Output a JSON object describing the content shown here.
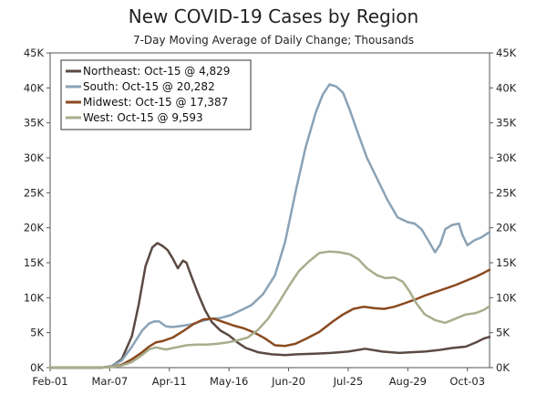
{
  "chart_data": {
    "type": "line",
    "title": "New COVID-19 Cases by Region",
    "subtitle": "7-Day Moving Average of Daily Change; Thousands",
    "xlabel": "",
    "ylabel": "",
    "x_range_days": [
      0,
      258
    ],
    "x_ticks": [
      {
        "label": "Feb-01",
        "day": 0
      },
      {
        "label": "Mar-07",
        "day": 35
      },
      {
        "label": "Apr-11",
        "day": 70
      },
      {
        "label": "May-16",
        "day": 105
      },
      {
        "label": "Jun-20",
        "day": 140
      },
      {
        "label": "Jul-25",
        "day": 175
      },
      {
        "label": "Aug-29",
        "day": 210
      },
      {
        "label": "Oct-03",
        "day": 245
      }
    ],
    "ylim": [
      0,
      45000
    ],
    "y_ticks": [
      {
        "label": "0K",
        "value": 0
      },
      {
        "label": "5K",
        "value": 5000
      },
      {
        "label": "10K",
        "value": 10000
      },
      {
        "label": "15K",
        "value": 15000
      },
      {
        "label": "20K",
        "value": 20000
      },
      {
        "label": "25K",
        "value": 25000
      },
      {
        "label": "30K",
        "value": 30000
      },
      {
        "label": "35K",
        "value": 35000
      },
      {
        "label": "40K",
        "value": 40000
      },
      {
        "label": "45K",
        "value": 45000
      }
    ],
    "legend_position": "top-left",
    "series": [
      {
        "name": "Northeast",
        "legend": "Northeast: Oct-15 @ 4,829",
        "color": "#5b4a44",
        "points": [
          [
            0,
            0
          ],
          [
            30,
            0
          ],
          [
            36,
            200
          ],
          [
            42,
            1200
          ],
          [
            48,
            4500
          ],
          [
            52,
            9000
          ],
          [
            56,
            14500
          ],
          [
            60,
            17200
          ],
          [
            63,
            17800
          ],
          [
            66,
            17400
          ],
          [
            69,
            16800
          ],
          [
            72,
            15600
          ],
          [
            75,
            14200
          ],
          [
            78,
            15300
          ],
          [
            80,
            15000
          ],
          [
            83,
            13000
          ],
          [
            87,
            10500
          ],
          [
            91,
            8200
          ],
          [
            95,
            6500
          ],
          [
            100,
            5300
          ],
          [
            105,
            4600
          ],
          [
            110,
            3600
          ],
          [
            115,
            2800
          ],
          [
            122,
            2200
          ],
          [
            130,
            1900
          ],
          [
            138,
            1800
          ],
          [
            145,
            1900
          ],
          [
            155,
            2000
          ],
          [
            165,
            2100
          ],
          [
            175,
            2300
          ],
          [
            185,
            2700
          ],
          [
            195,
            2300
          ],
          [
            205,
            2100
          ],
          [
            212,
            2200
          ],
          [
            220,
            2300
          ],
          [
            228,
            2500
          ],
          [
            236,
            2800
          ],
          [
            244,
            3000
          ],
          [
            250,
            3600
          ],
          [
            255,
            4200
          ],
          [
            258,
            4400
          ]
        ]
      },
      {
        "name": "South",
        "legend": "South: Oct-15 @ 20,282",
        "color": "#8aa2b6",
        "points": [
          [
            0,
            0
          ],
          [
            30,
            0
          ],
          [
            36,
            200
          ],
          [
            42,
            1000
          ],
          [
            48,
            3000
          ],
          [
            54,
            5300
          ],
          [
            58,
            6300
          ],
          [
            61,
            6600
          ],
          [
            64,
            6600
          ],
          [
            68,
            5900
          ],
          [
            72,
            5800
          ],
          [
            78,
            6000
          ],
          [
            83,
            6200
          ],
          [
            88,
            6600
          ],
          [
            95,
            7000
          ],
          [
            100,
            7100
          ],
          [
            106,
            7500
          ],
          [
            112,
            8200
          ],
          [
            118,
            8900
          ],
          [
            125,
            10500
          ],
          [
            132,
            13200
          ],
          [
            138,
            18000
          ],
          [
            144,
            25000
          ],
          [
            150,
            31500
          ],
          [
            156,
            36500
          ],
          [
            160,
            39000
          ],
          [
            164,
            40500
          ],
          [
            168,
            40200
          ],
          [
            172,
            39300
          ],
          [
            176,
            36800
          ],
          [
            180,
            34000
          ],
          [
            186,
            30000
          ],
          [
            192,
            27000
          ],
          [
            198,
            24000
          ],
          [
            204,
            21500
          ],
          [
            210,
            20800
          ],
          [
            214,
            20600
          ],
          [
            218,
            19800
          ],
          [
            222,
            18200
          ],
          [
            226,
            16500
          ],
          [
            229,
            17600
          ],
          [
            232,
            19800
          ],
          [
            236,
            20400
          ],
          [
            240,
            20600
          ],
          [
            242,
            19000
          ],
          [
            245,
            17500
          ],
          [
            249,
            18200
          ],
          [
            253,
            18600
          ],
          [
            258,
            19400
          ]
        ]
      },
      {
        "name": "Midwest",
        "legend": "Midwest: Oct-15 @ 17,387",
        "color": "#8a4a1f",
        "points": [
          [
            0,
            0
          ],
          [
            30,
            0
          ],
          [
            36,
            100
          ],
          [
            42,
            400
          ],
          [
            48,
            1200
          ],
          [
            54,
            2200
          ],
          [
            58,
            3000
          ],
          [
            62,
            3600
          ],
          [
            66,
            3800
          ],
          [
            72,
            4300
          ],
          [
            78,
            5200
          ],
          [
            84,
            6200
          ],
          [
            90,
            6900
          ],
          [
            96,
            7000
          ],
          [
            102,
            6500
          ],
          [
            108,
            6000
          ],
          [
            114,
            5600
          ],
          [
            120,
            5000
          ],
          [
            126,
            4200
          ],
          [
            132,
            3200
          ],
          [
            138,
            3100
          ],
          [
            144,
            3400
          ],
          [
            150,
            4100
          ],
          [
            158,
            5100
          ],
          [
            166,
            6600
          ],
          [
            172,
            7600
          ],
          [
            178,
            8400
          ],
          [
            184,
            8700
          ],
          [
            190,
            8500
          ],
          [
            196,
            8400
          ],
          [
            202,
            8700
          ],
          [
            208,
            9200
          ],
          [
            214,
            9700
          ],
          [
            220,
            10300
          ],
          [
            226,
            10800
          ],
          [
            232,
            11300
          ],
          [
            238,
            11800
          ],
          [
            244,
            12400
          ],
          [
            250,
            13000
          ],
          [
            255,
            13600
          ],
          [
            258,
            14000
          ]
        ]
      },
      {
        "name": "West",
        "legend": "West: Oct-15 @ 9,593",
        "color": "#a8ad8c",
        "points": [
          [
            0,
            0
          ],
          [
            30,
            0
          ],
          [
            36,
            100
          ],
          [
            42,
            300
          ],
          [
            48,
            800
          ],
          [
            54,
            1800
          ],
          [
            58,
            2600
          ],
          [
            62,
            2900
          ],
          [
            68,
            2600
          ],
          [
            74,
            2900
          ],
          [
            80,
            3200
          ],
          [
            86,
            3300
          ],
          [
            92,
            3300
          ],
          [
            98,
            3400
          ],
          [
            104,
            3600
          ],
          [
            110,
            3900
          ],
          [
            116,
            4300
          ],
          [
            122,
            5400
          ],
          [
            128,
            7000
          ],
          [
            134,
            9200
          ],
          [
            140,
            11600
          ],
          [
            146,
            13800
          ],
          [
            152,
            15200
          ],
          [
            158,
            16400
          ],
          [
            164,
            16600
          ],
          [
            170,
            16500
          ],
          [
            176,
            16200
          ],
          [
            181,
            15500
          ],
          [
            186,
            14200
          ],
          [
            192,
            13200
          ],
          [
            197,
            12800
          ],
          [
            202,
            12900
          ],
          [
            207,
            12300
          ],
          [
            211,
            10900
          ],
          [
            215,
            9200
          ],
          [
            220,
            7600
          ],
          [
            226,
            6800
          ],
          [
            232,
            6400
          ],
          [
            238,
            7000
          ],
          [
            244,
            7600
          ],
          [
            250,
            7800
          ],
          [
            255,
            8300
          ],
          [
            258,
            8800
          ]
        ]
      }
    ]
  }
}
